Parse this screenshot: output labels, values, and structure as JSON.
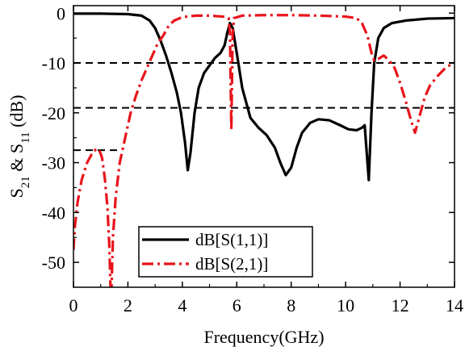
{
  "chart_data": {
    "type": "line",
    "xlabel": "Frequency(GHz)",
    "ylabel": {
      "parts": [
        {
          "text": "S",
          "sub": false
        },
        {
          "text": "21",
          "sub": true
        },
        {
          "text": " & S",
          "sub": false
        },
        {
          "text": "11",
          "sub": true
        },
        {
          "text": " (dB)",
          "sub": false
        }
      ]
    },
    "xlim": [
      0,
      14
    ],
    "ylim": [
      -55,
      1.5
    ],
    "xticks": [
      0,
      2,
      4,
      6,
      8,
      10,
      12,
      14
    ],
    "yticks": [
      0,
      -10,
      -20,
      -30,
      -40,
      -50
    ],
    "grid": false,
    "legend_position": "bottom-left",
    "reference_lines": [
      {
        "y": -10,
        "x_range": [
          0,
          14
        ]
      },
      {
        "y": -19,
        "x_range": [
          0,
          14
        ]
      },
      {
        "y": -27.5,
        "x_range": [
          0,
          1.7
        ]
      }
    ],
    "series": [
      {
        "name": "dB[S(1,1)]",
        "color": "#000000",
        "style": "solid",
        "points": [
          [
            0,
            -0.1
          ],
          [
            1,
            -0.1
          ],
          [
            2,
            -0.2
          ],
          [
            2.5,
            -0.5
          ],
          [
            2.8,
            -1.5
          ],
          [
            3.0,
            -3
          ],
          [
            3.2,
            -5.5
          ],
          [
            3.4,
            -8.5
          ],
          [
            3.6,
            -12
          ],
          [
            3.8,
            -16
          ],
          [
            3.95,
            -20
          ],
          [
            4.1,
            -26
          ],
          [
            4.2,
            -31.5
          ],
          [
            4.3,
            -28
          ],
          [
            4.45,
            -20
          ],
          [
            4.6,
            -15
          ],
          [
            4.8,
            -12
          ],
          [
            5.0,
            -10.5
          ],
          [
            5.2,
            -9
          ],
          [
            5.4,
            -8
          ],
          [
            5.55,
            -6.5
          ],
          [
            5.65,
            -4
          ],
          [
            5.75,
            -2
          ],
          [
            5.85,
            -3
          ],
          [
            6.0,
            -8
          ],
          [
            6.2,
            -15
          ],
          [
            6.5,
            -21
          ],
          [
            6.8,
            -23
          ],
          [
            7.1,
            -24.5
          ],
          [
            7.4,
            -27
          ],
          [
            7.6,
            -30
          ],
          [
            7.8,
            -32.5
          ],
          [
            8.0,
            -31
          ],
          [
            8.2,
            -27
          ],
          [
            8.4,
            -24
          ],
          [
            8.7,
            -22
          ],
          [
            9.0,
            -21.3
          ],
          [
            9.4,
            -21.5
          ],
          [
            9.8,
            -22.5
          ],
          [
            10.1,
            -23.3
          ],
          [
            10.4,
            -23.5
          ],
          [
            10.6,
            -23
          ],
          [
            10.7,
            -22.5
          ],
          [
            10.85,
            -33.5
          ],
          [
            10.95,
            -20
          ],
          [
            11.05,
            -10
          ],
          [
            11.2,
            -5
          ],
          [
            11.4,
            -3
          ],
          [
            11.7,
            -2
          ],
          [
            12.2,
            -1.5
          ],
          [
            13,
            -1.1
          ],
          [
            14,
            -1
          ]
        ]
      },
      {
        "name": "dB[S(2,1)]",
        "color": "#e8141b",
        "style": "dashdot",
        "points": [
          [
            0,
            -47.5
          ],
          [
            0.05,
            -43
          ],
          [
            0.15,
            -38
          ],
          [
            0.3,
            -33.5
          ],
          [
            0.5,
            -30
          ],
          [
            0.7,
            -28
          ],
          [
            0.85,
            -27.2
          ],
          [
            0.95,
            -27.5
          ],
          [
            1.05,
            -29
          ],
          [
            1.15,
            -33
          ],
          [
            1.25,
            -39
          ],
          [
            1.32,
            -47
          ],
          [
            1.36,
            -55
          ],
          [
            1.4,
            -55
          ],
          [
            1.45,
            -45
          ],
          [
            1.55,
            -37
          ],
          [
            1.7,
            -30
          ],
          [
            1.9,
            -25
          ],
          [
            2.1,
            -20
          ],
          [
            2.3,
            -16.5
          ],
          [
            2.5,
            -13.5
          ],
          [
            2.7,
            -11
          ],
          [
            2.9,
            -8.5
          ],
          [
            3.1,
            -6
          ],
          [
            3.3,
            -4.5
          ],
          [
            3.5,
            -2.5
          ],
          [
            3.7,
            -1.5
          ],
          [
            4.0,
            -0.8
          ],
          [
            4.5,
            -0.5
          ],
          [
            5.0,
            -0.5
          ],
          [
            5.5,
            -0.7
          ],
          [
            5.7,
            -1
          ],
          [
            5.75,
            -4
          ],
          [
            5.8,
            -23.5
          ],
          [
            5.85,
            -4
          ],
          [
            5.9,
            -1
          ],
          [
            6.2,
            -0.5
          ],
          [
            7,
            -0.4
          ],
          [
            8,
            -0.4
          ],
          [
            9,
            -0.5
          ],
          [
            10,
            -0.7
          ],
          [
            10.4,
            -1
          ],
          [
            10.6,
            -2
          ],
          [
            10.8,
            -4.5
          ],
          [
            10.95,
            -8
          ],
          [
            11.05,
            -9.5
          ],
          [
            11.2,
            -9.2
          ],
          [
            11.4,
            -8.5
          ],
          [
            11.6,
            -9.5
          ],
          [
            11.8,
            -11
          ],
          [
            12.0,
            -14
          ],
          [
            12.2,
            -17.5
          ],
          [
            12.4,
            -21.5
          ],
          [
            12.55,
            -24
          ],
          [
            12.7,
            -21
          ],
          [
            12.9,
            -17
          ],
          [
            13.1,
            -14.5
          ],
          [
            13.4,
            -12.5
          ],
          [
            13.7,
            -10.8
          ],
          [
            14,
            -10
          ]
        ]
      }
    ]
  }
}
